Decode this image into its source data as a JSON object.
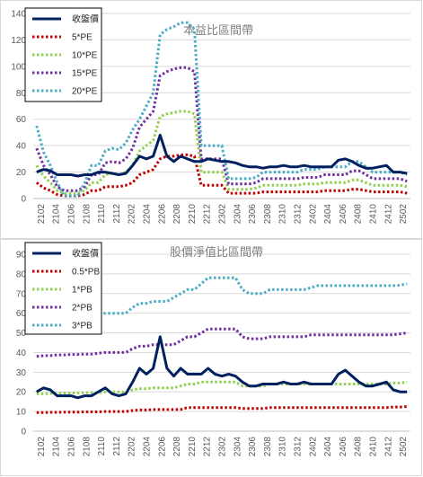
{
  "chart_data": [
    {
      "type": "line",
      "title": "",
      "annotation": "本益比區間帶",
      "xlabel": "",
      "ylabel": "",
      "ylim": [
        0,
        140
      ],
      "y_ticks": [
        0,
        20,
        40,
        60,
        80,
        100,
        120,
        140
      ],
      "x_tick_labels": [
        "2102",
        "2104",
        "2106",
        "2108",
        "2110",
        "2112",
        "2202",
        "2204",
        "2206",
        "2208",
        "2210",
        "2212",
        "2302",
        "2304",
        "2306",
        "2308",
        "2310",
        "2312",
        "2402",
        "2404",
        "2406",
        "2408",
        "2410",
        "2412",
        "2502"
      ],
      "grid": true,
      "legend_position": "top-left",
      "series": [
        {
          "name": "收盤價",
          "color": "#002060",
          "style": "solid",
          "values": [
            20,
            22,
            21,
            18,
            18,
            18,
            17,
            18,
            18,
            20,
            20,
            19,
            18,
            19,
            25,
            32,
            30,
            32,
            48,
            32,
            28,
            32,
            30,
            28,
            28,
            30,
            29,
            28,
            28,
            27,
            25,
            24,
            24,
            23,
            24,
            24,
            25,
            24,
            24,
            25,
            24,
            24,
            24,
            24,
            29,
            30,
            28,
            25,
            23,
            23,
            24,
            25,
            20,
            20,
            19
          ]
        },
        {
          "name": "5*PE",
          "color": "#c00000",
          "style": "dotted",
          "values": [
            12,
            8,
            6,
            3,
            2,
            2,
            2,
            3,
            6,
            6,
            9,
            9,
            9,
            10,
            12,
            18,
            20,
            22,
            30,
            32,
            32,
            33,
            33,
            32,
            10,
            10,
            10,
            10,
            4,
            4,
            4,
            4,
            4,
            5,
            5,
            5,
            5,
            5,
            5,
            5,
            5,
            5,
            6,
            6,
            6,
            6,
            7,
            7,
            6,
            5,
            5,
            5,
            5,
            5,
            4
          ]
        },
        {
          "name": "10*PE",
          "color": "#92d050",
          "style": "dotted",
          "values": [
            25,
            17,
            12,
            6,
            4,
            4,
            4,
            6,
            12,
            12,
            18,
            19,
            18,
            20,
            25,
            36,
            40,
            44,
            62,
            64,
            65,
            66,
            66,
            64,
            20,
            20,
            20,
            20,
            7,
            7,
            7,
            7,
            8,
            10,
            10,
            10,
            10,
            10,
            10,
            11,
            11,
            11,
            12,
            12,
            12,
            12,
            14,
            14,
            12,
            10,
            10,
            10,
            10,
            10,
            9
          ]
        },
        {
          "name": "15*PE",
          "color": "#7030a0",
          "style": "dotted",
          "values": [
            38,
            25,
            18,
            9,
            6,
            6,
            6,
            9,
            18,
            18,
            27,
            28,
            27,
            30,
            38,
            54,
            60,
            66,
            93,
            96,
            98,
            99,
            99,
            96,
            30,
            30,
            30,
            30,
            11,
            11,
            11,
            11,
            12,
            15,
            15,
            15,
            15,
            15,
            15,
            16,
            16,
            16,
            18,
            18,
            18,
            18,
            21,
            21,
            18,
            15,
            15,
            15,
            15,
            15,
            13
          ]
        },
        {
          "name": "20*PE",
          "color": "#4bacc6",
          "style": "dotted",
          "values": [
            55,
            35,
            25,
            12,
            2,
            2,
            2,
            12,
            25,
            25,
            36,
            38,
            37,
            42,
            52,
            60,
            70,
            80,
            124,
            128,
            130,
            133,
            133,
            128,
            40,
            40,
            40,
            40,
            15,
            15,
            15,
            15,
            16,
            20,
            20,
            20,
            20,
            20,
            20,
            22,
            22,
            22,
            24,
            24,
            24,
            24,
            28,
            28,
            24,
            20,
            20,
            20,
            20,
            20,
            18
          ]
        }
      ]
    },
    {
      "type": "line",
      "title": "",
      "annotation": "股價淨值比區間帶",
      "xlabel": "",
      "ylabel": "",
      "ylim": [
        0,
        90
      ],
      "y_ticks": [
        0,
        10,
        20,
        30,
        40,
        50,
        60,
        70,
        80,
        90
      ],
      "x_tick_labels": [
        "2102",
        "2104",
        "2106",
        "2108",
        "2110",
        "2112",
        "2202",
        "2204",
        "2206",
        "2208",
        "2210",
        "2212",
        "2302",
        "2304",
        "2306",
        "2308",
        "2310",
        "2312",
        "2402",
        "2404",
        "2406",
        "2408",
        "2410",
        "2412",
        "2502"
      ],
      "grid": true,
      "legend_position": "top-left",
      "series": [
        {
          "name": "收盤價",
          "color": "#002060",
          "style": "solid",
          "values": [
            20,
            22,
            21,
            18,
            18,
            18,
            17,
            18,
            18,
            20,
            22,
            19,
            18,
            19,
            25,
            32,
            29,
            32,
            48,
            32,
            28,
            32,
            29,
            29,
            29,
            32,
            29,
            28,
            29,
            28,
            25,
            23,
            23,
            24,
            24,
            24,
            25,
            24,
            24,
            25,
            24,
            24,
            24,
            24,
            29,
            31,
            28,
            25,
            23,
            23,
            24,
            25,
            21,
            20,
            20
          ]
        },
        {
          "name": "0.5*PB",
          "color": "#c00000",
          "style": "dotted",
          "values": [
            9.5,
            9.5,
            9.6,
            9.6,
            9.7,
            9.7,
            9.7,
            9.8,
            9.8,
            9.8,
            10,
            10,
            10,
            10,
            10.5,
            10.8,
            10.8,
            11,
            11,
            11,
            11,
            11,
            12,
            12,
            12,
            12,
            12,
            12,
            12,
            12,
            11.5,
            11.5,
            11.5,
            11.5,
            12,
            12,
            12,
            12,
            12,
            12,
            12,
            12,
            12,
            12,
            12,
            12,
            12,
            12,
            12,
            12,
            12,
            12,
            12.3,
            12.3,
            12.5
          ]
        },
        {
          "name": "1*PB",
          "color": "#92d050",
          "style": "dotted",
          "values": [
            19,
            19,
            19.2,
            19.2,
            19.4,
            19.4,
            19.4,
            19.6,
            19.6,
            19.6,
            20,
            20,
            20,
            20,
            21,
            21.6,
            21.6,
            22,
            22,
            22,
            22,
            23,
            24,
            24,
            25,
            25,
            25,
            25,
            25,
            25,
            23,
            23,
            23,
            23,
            24,
            24,
            24,
            24,
            24,
            24,
            24,
            24,
            24,
            24,
            24,
            24,
            24,
            24,
            24,
            24,
            24,
            24,
            24.5,
            24.5,
            25
          ]
        },
        {
          "name": "2*PB",
          "color": "#7030a0",
          "style": "dotted",
          "values": [
            38,
            38.4,
            38.4,
            38.8,
            38.8,
            39,
            39,
            39.2,
            39.2,
            39.6,
            40,
            40,
            40,
            40,
            42,
            43.2,
            43.2,
            44,
            44,
            44,
            44,
            46,
            48,
            48,
            50,
            52,
            52,
            52,
            52,
            52,
            48,
            47,
            47,
            47,
            48,
            48,
            48,
            48,
            48,
            48,
            49,
            49,
            49,
            49,
            49,
            49,
            49,
            49,
            49,
            49,
            49,
            49,
            49,
            49.5,
            50
          ]
        },
        {
          "name": "3*PB",
          "color": "#4bacc6",
          "style": "dotted",
          "values": [
            57,
            57.6,
            57.6,
            58.2,
            58.2,
            58.5,
            58.5,
            58.8,
            58.8,
            59.4,
            60,
            60,
            60,
            60,
            63,
            65,
            65,
            66,
            66,
            66,
            68,
            70,
            72,
            72,
            75,
            78,
            78,
            78,
            78,
            78,
            72,
            70,
            70,
            70,
            72,
            72,
            72,
            72,
            72,
            72,
            73,
            74,
            74,
            74,
            74,
            74,
            74,
            74,
            74,
            74,
            74,
            74,
            74,
            74.2,
            75
          ]
        }
      ]
    }
  ]
}
